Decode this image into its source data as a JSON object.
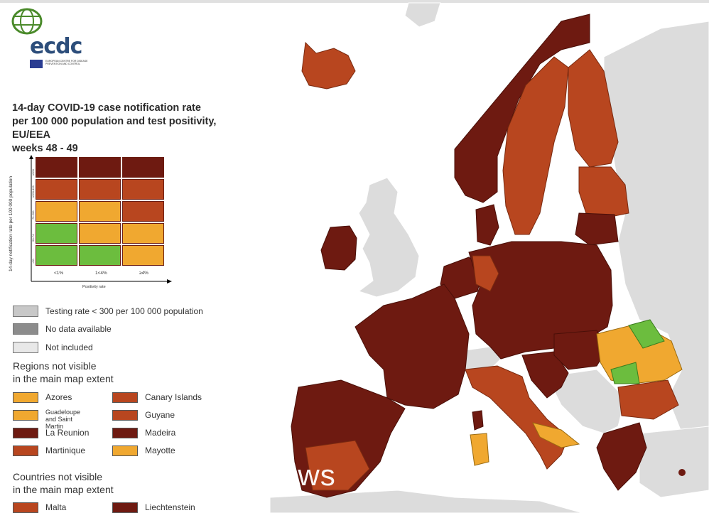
{
  "organization": {
    "logo_text": "ecdc",
    "subtitle": "EUROPEAN CENTRE FOR DISEASE PREVENTION AND CONTROL"
  },
  "title": {
    "line1": "14-day COVID-19 case notification rate",
    "line2": "per 100 000 population and test positivity, EU/EEA",
    "line3": "weeks 48 - 49"
  },
  "matrix": {
    "y_axis_label": "14-day notification rate per 100 000 population",
    "x_axis_label": "Positivity rate",
    "x_ticks": [
      "<1%",
      "1<4%",
      "≥4%"
    ],
    "y_ticks": [
      "≥500",
      "≥200-499",
      "75-200",
      "50-74",
      "<50"
    ],
    "rows": [
      [
        "#6e1a11",
        "#6e1a11",
        "#6e1a11"
      ],
      [
        "#b8461f",
        "#b8461f",
        "#b8461f"
      ],
      [
        "#f0a830",
        "#f0a830",
        "#b8461f"
      ],
      [
        "#6cbd3e",
        "#f0a830",
        "#f0a830"
      ],
      [
        "#6cbd3e",
        "#6cbd3e",
        "#f0a830"
      ]
    ]
  },
  "legend": [
    {
      "label": "Testing rate < 300 per 100 000 population",
      "color": "#c8c8c8"
    },
    {
      "label": "No data available",
      "color": "#8c8c8c"
    },
    {
      "label": "Not included",
      "color": "#e8e8e8"
    }
  ],
  "regions_heading": "Regions not visible\nin the main map extent",
  "regions": [
    {
      "label": "Azores",
      "color": "#f0a830"
    },
    {
      "label": "Canary Islands",
      "color": "#b8461f"
    },
    {
      "label": "Guadeloupe\nand Saint Martin",
      "color": "#f0a830"
    },
    {
      "label": "Guyane",
      "color": "#b8461f"
    },
    {
      "label": "La Reunion",
      "color": "#6e1a11"
    },
    {
      "label": "Madeira",
      "color": "#6e1a11"
    },
    {
      "label": "Martinique",
      "color": "#b8461f"
    },
    {
      "label": "Mayotte",
      "color": "#f0a830"
    }
  ],
  "countries_heading": "Countries not visible\nin the main map extent",
  "countries": [
    {
      "label": "Malta",
      "color": "#b8461f"
    },
    {
      "label": "Liechtenstein",
      "color": "#6e1a11"
    }
  ],
  "colors": {
    "very_dark_red": "#6e1a11",
    "red": "#b8461f",
    "orange": "#f0a830",
    "green": "#6cbd3e",
    "not_included": "#dcdcdc",
    "sea": "#ffffff"
  },
  "watermark": "ews"
}
